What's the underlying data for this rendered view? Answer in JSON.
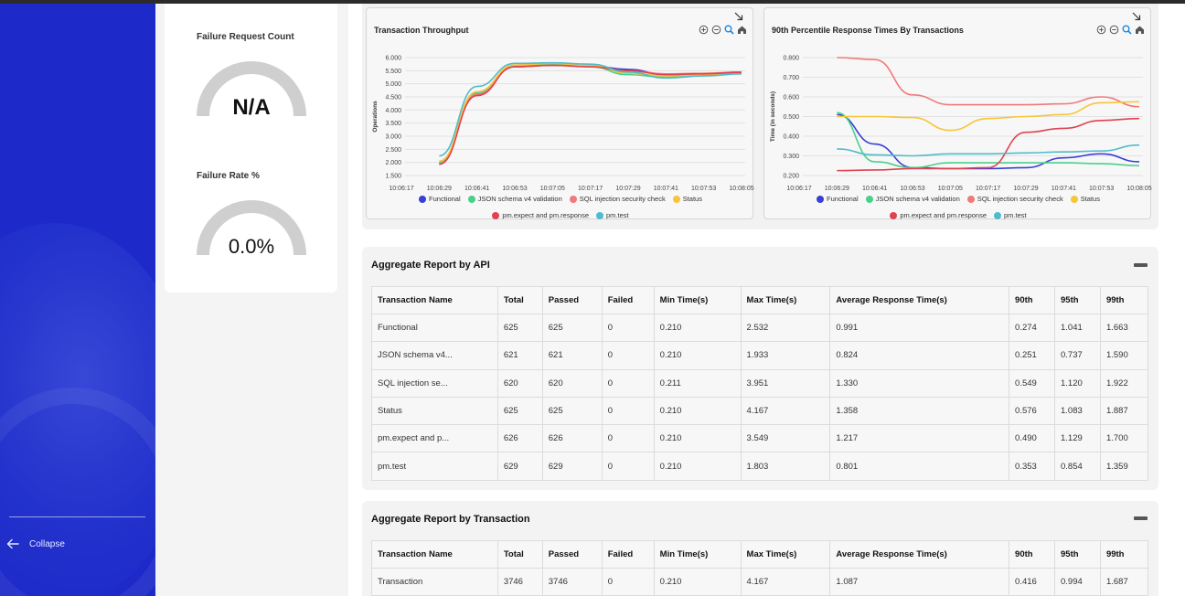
{
  "sidebar": {
    "collapse_label": "Collapse"
  },
  "gauges": [
    {
      "title": "Failure Request Count",
      "value": "N/A"
    },
    {
      "title": "Failure Rate %",
      "value": "0.0%"
    }
  ],
  "colors": {
    "Functional": "#3a3fd6",
    "JSON schema v4 validation": "#4bd08b",
    "SQL injection security check": "#f07a7a",
    "Status": "#f7c53a",
    "pm.expect and pm.response": "#e0434f",
    "pm.test": "#4fbcc9"
  },
  "chart_data": [
    {
      "type": "line",
      "title": "Transaction Throughput",
      "ylabel": "Operations",
      "xlabel": "",
      "ylim": [
        1.5,
        6.0
      ],
      "yticks": [
        "1.500",
        "2.000",
        "2.500",
        "3.000",
        "3.500",
        "4.000",
        "4.500",
        "5.000",
        "5.500",
        "6.000"
      ],
      "x": [
        "10:06:17",
        "10:06:29",
        "10:06:41",
        "10:06:53",
        "10:07:05",
        "10:07:17",
        "10:07:29",
        "10:07:41",
        "10:07:53",
        "10:08:05"
      ],
      "series": [
        {
          "name": "Functional",
          "values": [
            null,
            1.97,
            4.6,
            5.65,
            5.72,
            5.68,
            5.55,
            5.35,
            5.38,
            5.45
          ]
        },
        {
          "name": "JSON schema v4 validation",
          "values": [
            null,
            2.0,
            4.65,
            5.7,
            5.75,
            5.65,
            5.35,
            5.25,
            5.33,
            5.4
          ]
        },
        {
          "name": "SQL injection security check",
          "values": [
            null,
            1.95,
            4.6,
            5.65,
            5.7,
            5.7,
            5.5,
            5.38,
            5.4,
            5.45
          ]
        },
        {
          "name": "Status",
          "values": [
            null,
            2.05,
            4.7,
            5.72,
            5.78,
            5.7,
            5.4,
            5.3,
            5.35,
            5.42
          ]
        },
        {
          "name": "pm.expect and pm.response",
          "values": [
            null,
            1.93,
            4.55,
            5.65,
            5.7,
            5.65,
            5.5,
            5.35,
            5.38,
            5.44
          ]
        },
        {
          "name": "pm.test",
          "values": [
            null,
            2.25,
            4.9,
            5.78,
            5.8,
            5.75,
            5.45,
            5.22,
            5.3,
            5.38
          ]
        }
      ],
      "legend": "bottom"
    },
    {
      "type": "line",
      "title": "90th Percentile Response Times By Transactions",
      "ylabel": "Time (in seconds)",
      "xlabel": "",
      "ylim": [
        0.2,
        0.8
      ],
      "yticks": [
        "0.200",
        "0.300",
        "0.400",
        "0.500",
        "0.600",
        "0.700",
        "0.800"
      ],
      "x": [
        "10:06:17",
        "10:06:29",
        "10:06:41",
        "10:06:53",
        "10:07:05",
        "10:07:17",
        "10:07:29",
        "10:07:41",
        "10:07:53",
        "10:08:05"
      ],
      "series": [
        {
          "name": "Functional",
          "values": [
            null,
            0.51,
            0.36,
            0.24,
            0.235,
            0.235,
            0.24,
            0.29,
            0.31,
            0.27
          ]
        },
        {
          "name": "JSON schema v4 validation",
          "values": [
            null,
            0.52,
            0.27,
            0.24,
            0.265,
            0.265,
            0.265,
            0.265,
            0.26,
            0.25
          ]
        },
        {
          "name": "SQL injection security check",
          "values": [
            null,
            0.8,
            0.79,
            0.61,
            0.56,
            0.56,
            0.56,
            0.565,
            0.6,
            0.55
          ]
        },
        {
          "name": "Status",
          "values": [
            null,
            0.5,
            0.5,
            0.495,
            0.43,
            0.49,
            0.5,
            0.51,
            0.57,
            0.575
          ]
        },
        {
          "name": "pm.expect and pm.response",
          "values": [
            null,
            0.225,
            0.228,
            0.235,
            0.235,
            0.24,
            0.42,
            0.44,
            0.48,
            0.49
          ]
        },
        {
          "name": "pm.test",
          "values": [
            null,
            0.335,
            0.305,
            0.3,
            0.31,
            0.31,
            0.315,
            0.32,
            0.325,
            0.355
          ]
        }
      ],
      "legend": "bottom"
    }
  ],
  "api_report": {
    "title": "Aggregate Report by API",
    "headers": [
      "Transaction Name",
      "Total",
      "Passed",
      "Failed",
      "Min Time(s)",
      "Max Time(s)",
      "Average Response Time(s)",
      "90th",
      "95th",
      "99th"
    ],
    "rows": [
      [
        "Functional",
        "625",
        "625",
        "0",
        "0.210",
        "2.532",
        "0.991",
        "0.274",
        "1.041",
        "1.663"
      ],
      [
        "JSON schema v4...",
        "621",
        "621",
        "0",
        "0.210",
        "1.933",
        "0.824",
        "0.251",
        "0.737",
        "1.590"
      ],
      [
        "SQL injection se...",
        "620",
        "620",
        "0",
        "0.211",
        "3.951",
        "1.330",
        "0.549",
        "1.120",
        "1.922"
      ],
      [
        "Status",
        "625",
        "625",
        "0",
        "0.210",
        "4.167",
        "1.358",
        "0.576",
        "1.083",
        "1.887"
      ],
      [
        "pm.expect and p...",
        "626",
        "626",
        "0",
        "0.210",
        "3.549",
        "1.217",
        "0.490",
        "1.129",
        "1.700"
      ],
      [
        "pm.test",
        "629",
        "629",
        "0",
        "0.210",
        "1.803",
        "0.801",
        "0.353",
        "0.854",
        "1.359"
      ]
    ]
  },
  "txn_report": {
    "title": "Aggregate Report by Transaction",
    "headers": [
      "Transaction Name",
      "Total",
      "Passed",
      "Failed",
      "Min Time(s)",
      "Max Time(s)",
      "Average Response Time(s)",
      "90th",
      "95th",
      "99th"
    ],
    "rows": [
      [
        "Transaction",
        "3746",
        "3746",
        "0",
        "0.210",
        "4.167",
        "1.087",
        "0.416",
        "0.994",
        "1.687"
      ]
    ]
  }
}
